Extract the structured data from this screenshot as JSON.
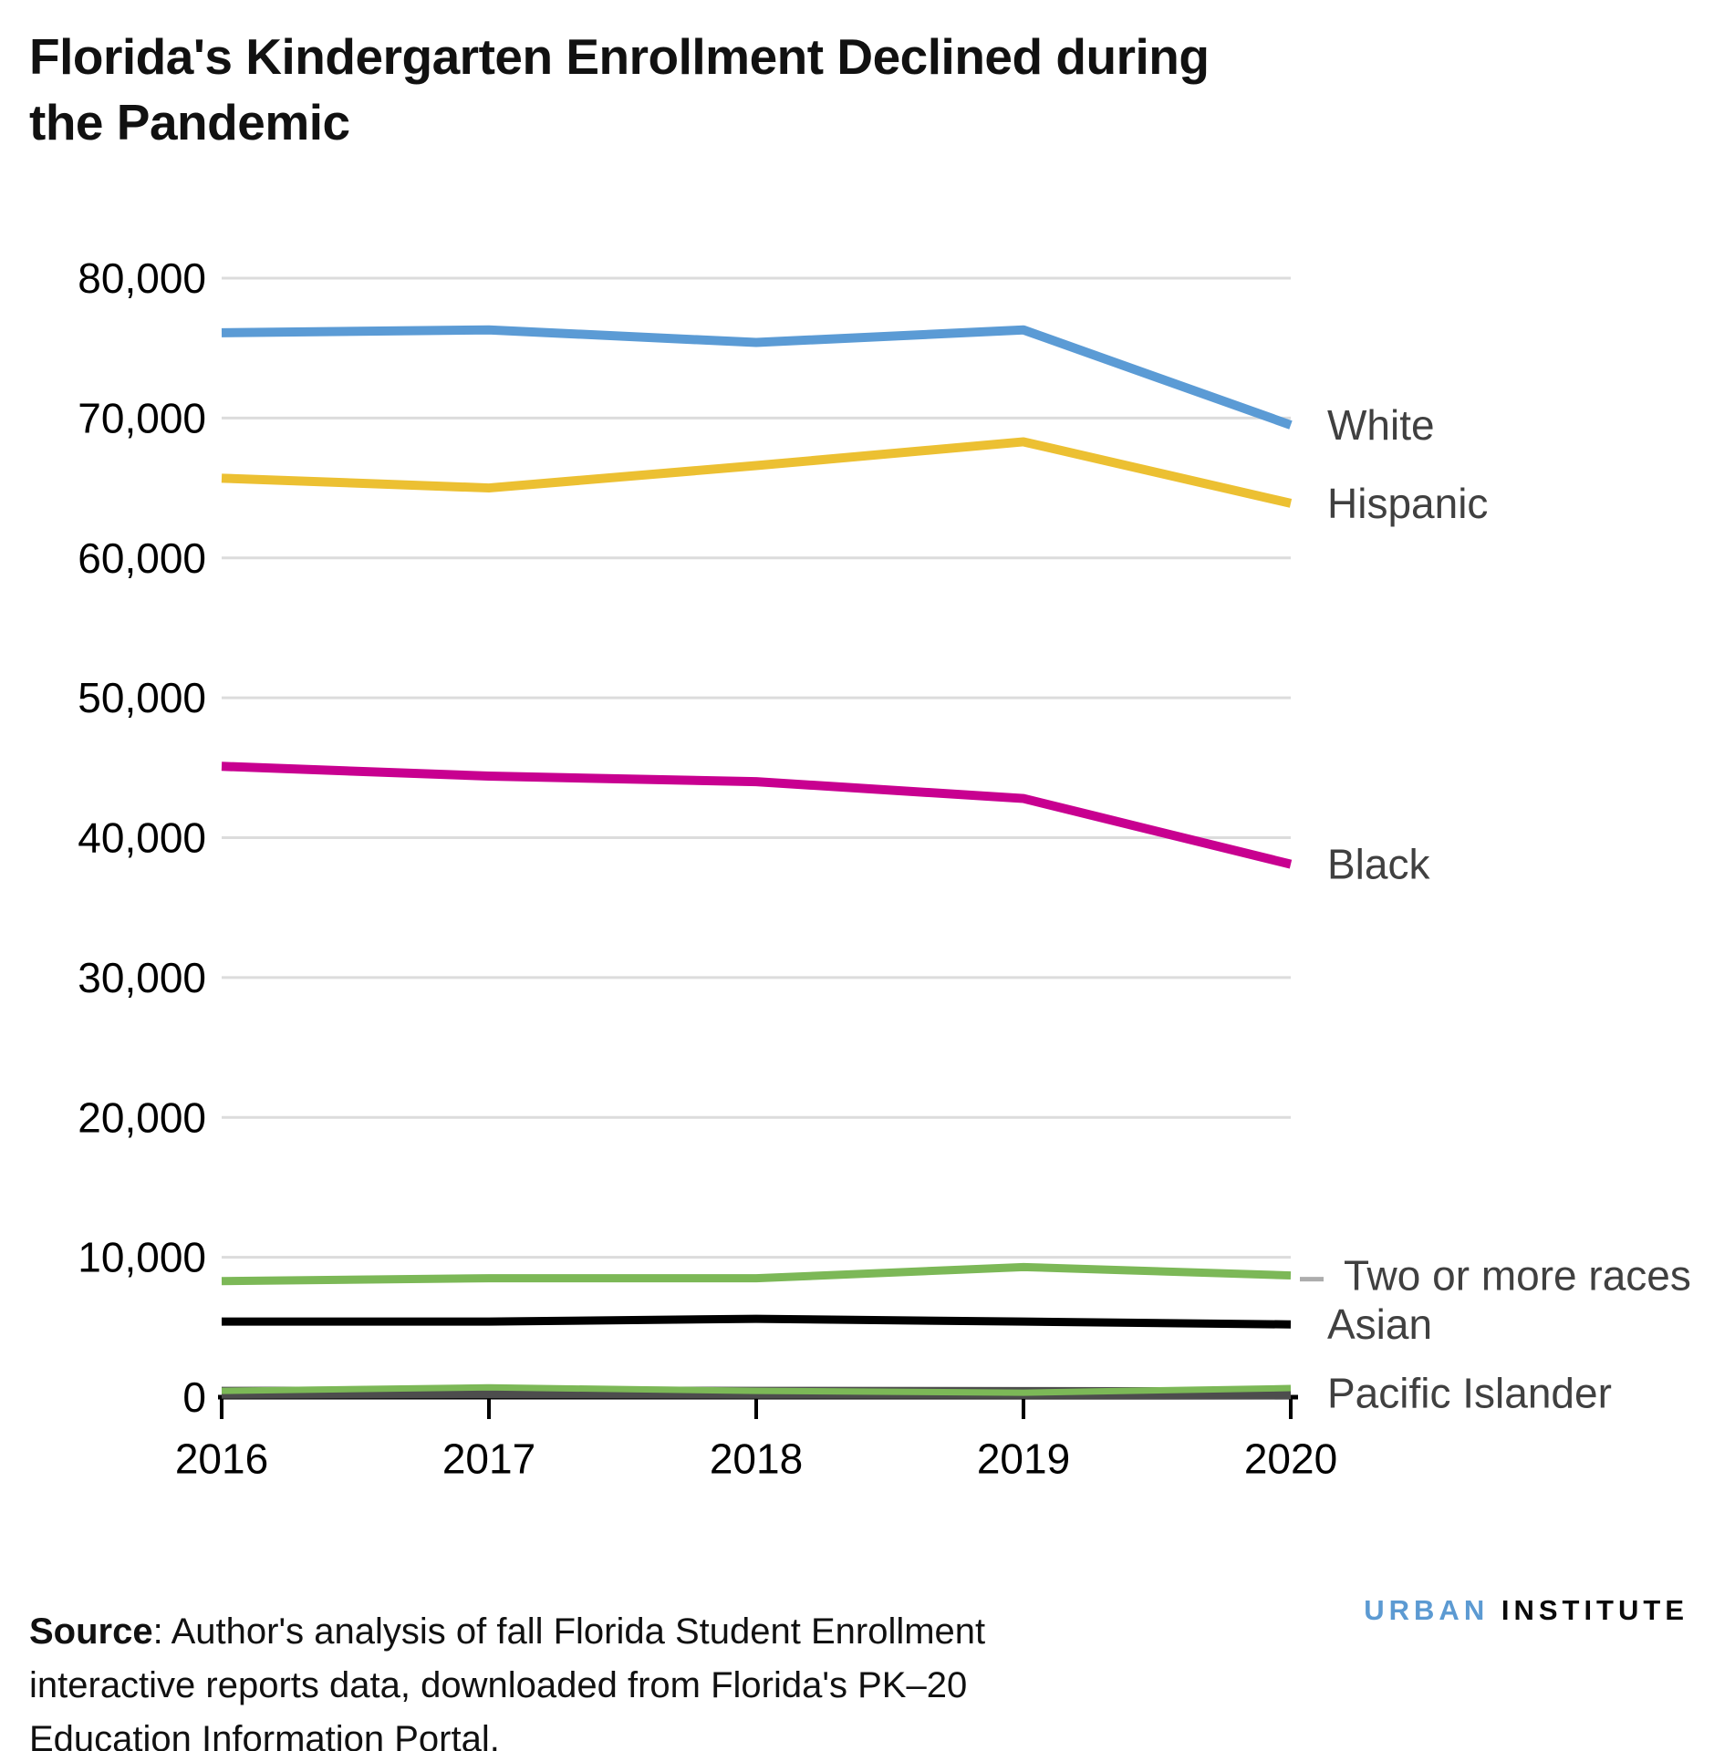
{
  "title": "Florida's Kindergarten Enrollment Declined during the Pandemic",
  "title_lines": [
    "Florida's Kindergarten Enrollment Declined during",
    "the Pandemic"
  ],
  "source": {
    "label": "Source",
    "line1_rest": ": Author's analysis of fall Florida Student Enrollment",
    "line2": "interactive reports data, downloaded from Florida's PK–20",
    "line3": "Education Information Portal."
  },
  "logo": {
    "urban": "URBAN",
    "institute": "INSTITUTE"
  },
  "colors": {
    "gridline": "#DCDCDC",
    "axis": "#000000",
    "label_gray": "#404040",
    "leader_dash": "#ADADAD",
    "white_series": "#5B9BD5",
    "hispanic_series": "#ECC032",
    "black_series": "#C80090",
    "two_or_more_series": "#7CB857",
    "asian_series": "#000000",
    "pacific_islander_series": "#4D4D4D",
    "logo_blue": "#5C9AD2"
  },
  "chart_data": {
    "type": "line",
    "x": [
      2016,
      2017,
      2018,
      2019,
      2020
    ],
    "x_labels": [
      "2016",
      "2017",
      "2018",
      "2019",
      "2020"
    ],
    "ylim": [
      0,
      80000
    ],
    "ytick_step": 10000,
    "ytick_labels": [
      "0",
      "10,000",
      "20,000",
      "30,000",
      "40,000",
      "50,000",
      "60,000",
      "70,000",
      "80,000"
    ],
    "grid": true,
    "legend_position": "labels-right-of-line-ends",
    "series": [
      {
        "name": "White",
        "label": "White",
        "color": "#5B9BD5",
        "width": 10,
        "values": [
          76100,
          76300,
          75400,
          76300,
          69500
        ]
      },
      {
        "name": "Hispanic",
        "label": "Hispanic",
        "color": "#ECC032",
        "width": 10,
        "values": [
          65700,
          65000,
          66600,
          68300,
          63900
        ]
      },
      {
        "name": "Black",
        "label": "Black",
        "color": "#C80090",
        "width": 10,
        "values": [
          45100,
          44400,
          44000,
          42800,
          38100
        ]
      },
      {
        "name": "Two or more races",
        "label": "Two or more races",
        "color": "#7CB857",
        "width": 9,
        "leader": true,
        "values": [
          8300,
          8500,
          8500,
          9300,
          8700
        ]
      },
      {
        "name": "Asian",
        "label": "Asian",
        "color": "#000000",
        "width": 9,
        "values": [
          5400,
          5400,
          5600,
          5400,
          5200
        ]
      },
      {
        "name": "Pacific Islander",
        "label": "Pacific Islander",
        "color": "#4D4D4D",
        "width": 13,
        "values": [
          320,
          350,
          320,
          300,
          280
        ]
      },
      {
        "name": "unlabeled green line (near zero)",
        "label": "",
        "color": "#7CB857",
        "width": 7,
        "values": [
          450,
          700,
          450,
          320,
          650
        ]
      }
    ]
  }
}
